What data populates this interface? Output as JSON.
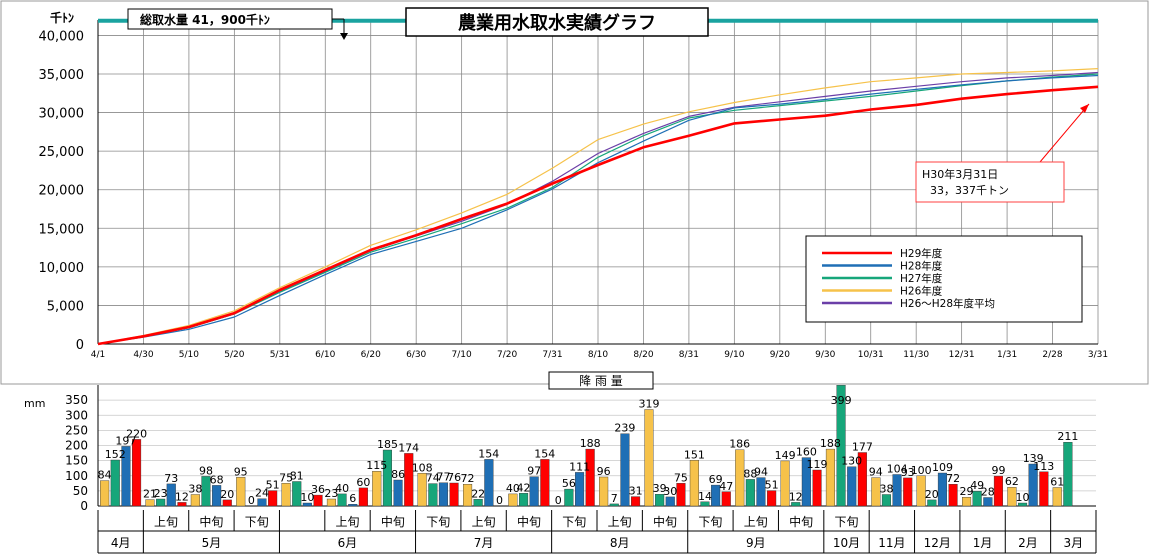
{
  "chart_data": [
    {
      "type": "line",
      "title": "農業用水取水実績グラフ",
      "ylabel": "千ﾄﾝ",
      "ylim": [
        0,
        42000
      ],
      "y_ticks": [
        "0",
        "5,000",
        "10,000",
        "15,000",
        "20,000",
        "25,000",
        "30,000",
        "35,000",
        "40,000"
      ],
      "y_tick_values": [
        0,
        5000,
        10000,
        15000,
        20000,
        25000,
        30000,
        35000,
        40000
      ],
      "categories": [
        "4/1",
        "4/30",
        "5/10",
        "5/20",
        "5/31",
        "6/10",
        "6/20",
        "6/30",
        "7/10",
        "7/20",
        "7/31",
        "8/10",
        "8/20",
        "8/31",
        "9/10",
        "9/20",
        "9/30",
        "10/31",
        "11/30",
        "12/31",
        "1/31",
        "2/28",
        "3/31"
      ],
      "grid": true,
      "total_intake_label": "総取水量 41，900千ﾄﾝ",
      "total_intake_value": 41900,
      "series": [
        {
          "name": "H29年度",
          "color": "#ff0000",
          "width": 2.6,
          "values": [
            0,
            1000,
            2200,
            4000,
            7000,
            9600,
            12200,
            14100,
            16200,
            18200,
            20800,
            23200,
            25500,
            27000,
            28600,
            29100,
            29600,
            30400,
            31000,
            31800,
            32400,
            32900,
            33337
          ]
        },
        {
          "name": "H28年度",
          "color": "#1f6fb5",
          "width": 1.2,
          "values": [
            0,
            900,
            1900,
            3500,
            6300,
            9000,
            11600,
            13300,
            15000,
            17400,
            20100,
            23500,
            26300,
            29000,
            30600,
            31100,
            31700,
            32400,
            33000,
            33600,
            34100,
            34500,
            34800
          ]
        },
        {
          "name": "H27年度",
          "color": "#16a67a",
          "width": 1.2,
          "values": [
            0,
            1000,
            2100,
            3900,
            6700,
            9300,
            11900,
            13700,
            15600,
            17600,
            20300,
            24200,
            27000,
            29300,
            30300,
            30900,
            31500,
            32100,
            32800,
            33500,
            34100,
            34600,
            35000
          ]
        },
        {
          "name": "H26年度",
          "color": "#f6c24a",
          "width": 1.2,
          "values": [
            0,
            1100,
            2400,
            4300,
            7300,
            10000,
            12800,
            14800,
            17000,
            19400,
            22800,
            26500,
            28500,
            30100,
            31300,
            32300,
            33200,
            34000,
            34500,
            35000,
            35200,
            35400,
            35700
          ]
        },
        {
          "name": "H26～H28年度平均",
          "color": "#6b3fa8",
          "width": 1.2,
          "values": [
            0,
            1000,
            2100,
            3900,
            6800,
            9400,
            12100,
            14000,
            15900,
            18100,
            21100,
            24700,
            27300,
            29500,
            30700,
            31400,
            32100,
            32800,
            33400,
            34000,
            34500,
            34800,
            35200
          ]
        }
      ],
      "annotation": {
        "lines": [
          "H30年3月31日",
          "33，337千トン"
        ]
      }
    },
    {
      "type": "bar",
      "title": "降 雨 量",
      "ylabel": "mm",
      "ylim": [
        0,
        400
      ],
      "y_ticks": [
        "0",
        "50",
        "100",
        "150",
        "200",
        "250",
        "300",
        "350"
      ],
      "y_tick_values": [
        0,
        50,
        100,
        150,
        200,
        250,
        300,
        350
      ],
      "series_colors": [
        "#f6c24a",
        "#16a67a",
        "#1f6fb5",
        "#ff0000"
      ],
      "periods": [
        {
          "values": [
            84,
            152,
            197,
            220
          ],
          "labels": [
            "84",
            "152",
            "197",
            "220"
          ]
        },
        {
          "values": [
            21,
            23,
            73,
            12
          ],
          "labels": [
            "21",
            "23",
            "73",
            "12"
          ]
        },
        {
          "values": [
            38,
            98,
            68,
            20
          ],
          "labels": [
            "38",
            "98",
            "68",
            "20"
          ]
        },
        {
          "values": [
            95,
            0,
            24,
            51
          ],
          "labels": [
            "95",
            "0",
            "24",
            "51"
          ]
        },
        {
          "values": [
            75,
            81,
            10,
            36
          ],
          "labels": [
            "75",
            "81",
            "10",
            "36"
          ]
        },
        {
          "values": [
            23,
            40,
            6,
            60
          ],
          "labels": [
            "23",
            "40",
            "6",
            "60"
          ]
        },
        {
          "values": [
            115,
            185,
            86,
            174
          ],
          "labels": [
            "115",
            "185",
            "86",
            "174"
          ]
        },
        {
          "values": [
            108,
            74,
            77,
            76
          ],
          "labels": [
            "108",
            "74",
            "77",
            "76"
          ]
        },
        {
          "values": [
            72,
            22,
            154,
            0
          ],
          "labels": [
            "72",
            "22",
            "154",
            "0"
          ]
        },
        {
          "values": [
            40,
            42,
            97,
            154
          ],
          "labels": [
            "40",
            "42",
            "97",
            "154"
          ]
        },
        {
          "values": [
            0,
            56,
            111,
            188
          ],
          "labels": [
            "0",
            "56",
            "111",
            "188"
          ]
        },
        {
          "values": [
            96,
            7,
            239,
            31
          ],
          "labels": [
            "96",
            "7",
            "239",
            "31"
          ]
        },
        {
          "values": [
            319,
            39,
            30,
            75
          ],
          "labels": [
            "319",
            "39",
            "30",
            "75"
          ]
        },
        {
          "values": [
            151,
            14,
            69,
            47
          ],
          "labels": [
            "151",
            "14",
            "69",
            "47"
          ]
        },
        {
          "values": [
            186,
            88,
            94,
            51
          ],
          "labels": [
            "186",
            "88",
            "94",
            "51"
          ]
        },
        {
          "values": [
            149,
            12,
            160,
            119
          ],
          "labels": [
            "149",
            "12",
            "160",
            "119"
          ]
        },
        {
          "values": [
            188,
            399,
            130,
            177
          ],
          "labels": [
            "188",
            "399",
            "130",
            "177"
          ]
        },
        {
          "values": [
            94,
            38,
            104,
            93
          ],
          "labels": [
            "94",
            "38",
            "104",
            "93"
          ]
        },
        {
          "values": [
            100,
            20,
            109,
            72
          ],
          "labels": [
            "100",
            "20",
            "109",
            "72"
          ]
        },
        {
          "values": [
            29,
            49,
            28,
            99
          ],
          "labels": [
            "29",
            "49",
            "28",
            "99"
          ]
        },
        {
          "values": [
            62,
            10,
            139,
            113
          ],
          "labels": [
            "62",
            "10",
            "139",
            "113"
          ]
        },
        {
          "values": [
            61,
            211,
            0,
            0
          ],
          "labels": [
            "61",
            "211",
            "",
            ""
          ]
        }
      ],
      "period_labels": [
        "",
        "上旬",
        "中旬",
        "下旬",
        "",
        "上旬",
        "中旬",
        "下旬",
        "上旬",
        "中旬",
        "下旬",
        "上旬",
        "中旬",
        "下旬",
        "上旬",
        "中旬",
        "下旬",
        "",
        "",
        "",
        "",
        ""
      ],
      "months": [
        {
          "label": "4月",
          "span": 1
        },
        {
          "label": "5月",
          "span": 3
        },
        {
          "label": "6月",
          "span": 3
        },
        {
          "label": "7月",
          "span": 3
        },
        {
          "label": "8月",
          "span": 3
        },
        {
          "label": "9月",
          "span": 3
        },
        {
          "label": "10月",
          "span": 1
        },
        {
          "label": "11月",
          "span": 1
        },
        {
          "label": "12月",
          "span": 1
        },
        {
          "label": "1月",
          "span": 1
        },
        {
          "label": "2月",
          "span": 1
        },
        {
          "label": "3月",
          "span": 1
        }
      ]
    }
  ]
}
